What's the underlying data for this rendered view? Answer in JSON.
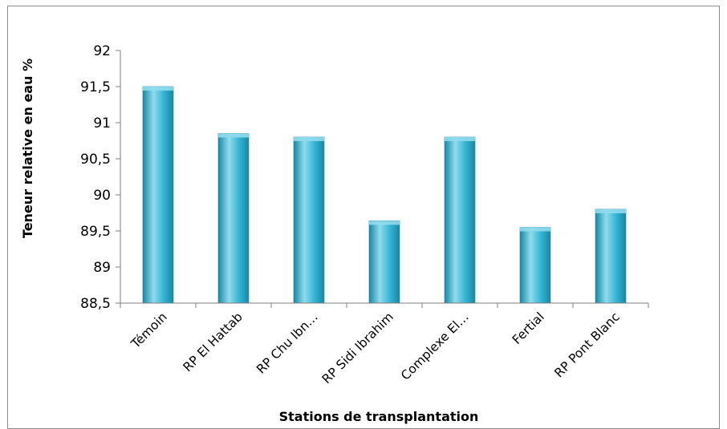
{
  "chart_data": {
    "type": "bar",
    "title": "",
    "xlabel": "Stations de transplantation",
    "ylabel": "Teneur relative en eau %",
    "categories": [
      "Témoin",
      "RP El Hattab",
      "RP Chu Ibn…",
      "RP Sidi Ibrahim",
      "Complexe El…",
      "Fertial",
      "RP Pont Blanc"
    ],
    "values": [
      91.5,
      90.85,
      90.8,
      89.64,
      90.8,
      89.55,
      89.8
    ],
    "ylim": [
      88.5,
      92
    ],
    "yticks": [
      "88,5",
      "89",
      "89,5",
      "90",
      "90,5",
      "91",
      "91,5",
      "92"
    ],
    "grid": false,
    "legend": "none",
    "colors": {
      "bar": "#31b3d2",
      "bar_light": "#8fdcec",
      "bar_dark": "#1b86a3",
      "axis": "#7f7f7f"
    }
  }
}
